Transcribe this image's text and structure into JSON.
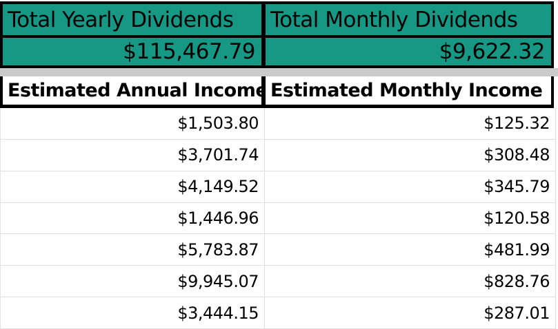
{
  "summary": {
    "cards": [
      {
        "label": "Total Yearly Dividends",
        "value": "$115,467.79"
      },
      {
        "label": "Total Monthly Dividends",
        "value": "$9,622.32"
      }
    ]
  },
  "income_table": {
    "columns": [
      "Estimated Annual Income",
      "Estimated Monthly Income"
    ],
    "rows": [
      [
        "$1,503.80",
        "$125.32"
      ],
      [
        "$3,701.74",
        "$308.48"
      ],
      [
        "$4,149.52",
        "$345.79"
      ],
      [
        "$1,446.96",
        "$120.58"
      ],
      [
        "$5,783.87",
        "$481.99"
      ],
      [
        "$9,945.07",
        "$828.76"
      ],
      [
        "$3,444.15",
        "$287.01"
      ]
    ]
  },
  "colors": {
    "accent_teal": "#169885",
    "border_black": "#000000",
    "separator_gray": "#cbcbcb",
    "gridline_gray": "#dedede"
  }
}
